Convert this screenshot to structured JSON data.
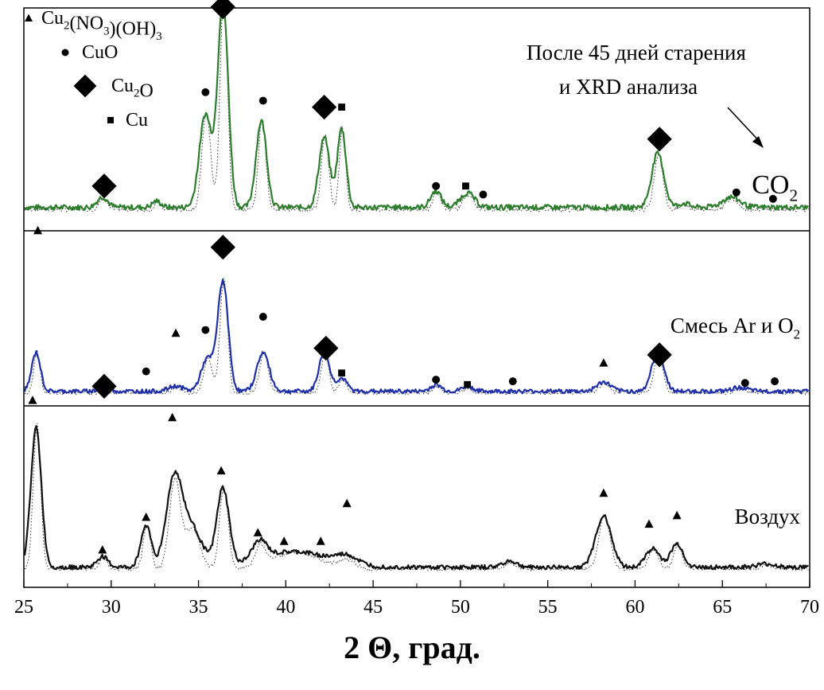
{
  "chart_data": {
    "type": "line",
    "xlabel": "2 Θ, град.",
    "ylabel": "",
    "xlim": [
      25,
      70
    ],
    "xticks": [
      "25",
      "30",
      "35",
      "40",
      "45",
      "50",
      "55",
      "60",
      "65",
      "70"
    ],
    "grid": false,
    "y_axis_visible": false,
    "legend_position": "top-left",
    "legend": [
      {
        "marker": "triangle",
        "label_parts": [
          [
            "Cu",
            ""
          ],
          [
            "2",
            "sub"
          ],
          [
            "(NO",
            ""
          ],
          [
            "3",
            "sub"
          ],
          [
            ")(OH)",
            ""
          ],
          [
            "3",
            "sub"
          ]
        ]
      },
      {
        "marker": "circle",
        "label_parts": [
          [
            "CuO",
            ""
          ]
        ]
      },
      {
        "marker": "diamond",
        "label_parts": [
          [
            "Cu",
            ""
          ],
          [
            "2",
            "sub"
          ],
          [
            "O",
            ""
          ]
        ]
      },
      {
        "marker": "square",
        "label_parts": [
          [
            "Cu",
            ""
          ]
        ]
      }
    ],
    "annotation_lines": [
      "После 45 дней старения",
      "и XRD анализа"
    ],
    "panels": [
      {
        "label_parts": [
          [
            "CO",
            ""
          ],
          [
            "2",
            "sub"
          ]
        ],
        "color": "#2e7d2e",
        "baseline": 0.08,
        "height": 0.97,
        "peaks": [
          [
            29.5,
            0.05,
            0.3
          ],
          [
            32.6,
            0.03,
            0.25
          ],
          [
            35.4,
            0.45,
            0.35
          ],
          [
            36.4,
            1.0,
            0.3
          ],
          [
            38.6,
            0.42,
            0.3
          ],
          [
            42.2,
            0.34,
            0.3
          ],
          [
            43.2,
            0.38,
            0.25
          ],
          [
            48.6,
            0.08,
            0.3
          ],
          [
            50.4,
            0.07,
            0.4
          ],
          [
            61.3,
            0.26,
            0.35
          ],
          [
            65.5,
            0.05,
            0.5
          ],
          [
            62.8,
            0.02,
            0.3
          ]
        ],
        "markers": [
          {
            "x": 29.6,
            "y": 0.18,
            "shape": "diamond"
          },
          {
            "x": 35.4,
            "y": 0.62,
            "shape": "circle"
          },
          {
            "x": 36.4,
            "y": 1.02,
            "shape": "diamond"
          },
          {
            "x": 38.7,
            "y": 0.58,
            "shape": "circle"
          },
          {
            "x": 42.2,
            "y": 0.55,
            "shape": "diamond"
          },
          {
            "x": 43.2,
            "y": 0.55,
            "shape": "square"
          },
          {
            "x": 48.6,
            "y": 0.18,
            "shape": "circle"
          },
          {
            "x": 50.3,
            "y": 0.18,
            "shape": "square"
          },
          {
            "x": 51.3,
            "y": 0.14,
            "shape": "circle"
          },
          {
            "x": 61.4,
            "y": 0.4,
            "shape": "diamond"
          },
          {
            "x": 65.8,
            "y": 0.15,
            "shape": "circle"
          },
          {
            "x": 67.9,
            "y": 0.12,
            "shape": "circle"
          }
        ]
      },
      {
        "label_parts": [
          [
            "Смесь Ar и O",
            ""
          ],
          [
            "2",
            "sub"
          ]
        ],
        "color": "#1f2fa8",
        "baseline": 0.05,
        "height": 0.78,
        "peaks": [
          [
            25.7,
            0.3,
            0.25
          ],
          [
            29.6,
            0.03,
            0.3
          ],
          [
            33.7,
            0.04,
            0.4
          ],
          [
            35.5,
            0.25,
            0.35
          ],
          [
            36.4,
            0.85,
            0.3
          ],
          [
            38.7,
            0.3,
            0.35
          ],
          [
            42.2,
            0.3,
            0.3
          ],
          [
            43.2,
            0.1,
            0.3
          ],
          [
            48.6,
            0.05,
            0.3
          ],
          [
            50.4,
            0.04,
            0.3
          ],
          [
            58.2,
            0.07,
            0.4
          ],
          [
            61.3,
            0.3,
            0.35
          ],
          [
            66.0,
            0.03,
            0.4
          ]
        ],
        "markers": [
          {
            "x": 25.8,
            "y": 1.02,
            "shape": "triangle"
          },
          {
            "x": 29.6,
            "y": 0.08,
            "shape": "diamond"
          },
          {
            "x": 32.0,
            "y": 0.17,
            "shape": "circle"
          },
          {
            "x": 33.7,
            "y": 0.4,
            "shape": "triangle"
          },
          {
            "x": 35.4,
            "y": 0.42,
            "shape": "circle"
          },
          {
            "x": 36.4,
            "y": 0.92,
            "shape": "diamond"
          },
          {
            "x": 38.7,
            "y": 0.5,
            "shape": "circle"
          },
          {
            "x": 42.3,
            "y": 0.31,
            "shape": "diamond"
          },
          {
            "x": 43.2,
            "y": 0.16,
            "shape": "square"
          },
          {
            "x": 48.6,
            "y": 0.12,
            "shape": "circle"
          },
          {
            "x": 50.4,
            "y": 0.09,
            "shape": "square"
          },
          {
            "x": 53.0,
            "y": 0.11,
            "shape": "circle"
          },
          {
            "x": 58.2,
            "y": 0.22,
            "shape": "triangle"
          },
          {
            "x": 61.4,
            "y": 0.27,
            "shape": "diamond"
          },
          {
            "x": 66.3,
            "y": 0.1,
            "shape": "circle"
          },
          {
            "x": 68.0,
            "y": 0.11,
            "shape": "circle"
          }
        ]
      },
      {
        "label_parts": [
          [
            "Воздух",
            ""
          ]
        ],
        "color": "#111111",
        "baseline": 0.08,
        "height": 0.9,
        "peaks": [
          [
            25.7,
            0.9,
            0.3
          ],
          [
            29.5,
            0.07,
            0.3
          ],
          [
            32.0,
            0.27,
            0.3
          ],
          [
            33.6,
            0.55,
            0.45
          ],
          [
            34.6,
            0.25,
            0.6
          ],
          [
            36.4,
            0.5,
            0.35
          ],
          [
            38.5,
            0.12,
            0.4
          ],
          [
            40.5,
            0.1,
            2.0
          ],
          [
            43.5,
            0.05,
            0.6
          ],
          [
            52.8,
            0.04,
            0.4
          ],
          [
            58.2,
            0.33,
            0.45
          ],
          [
            61.0,
            0.12,
            0.4
          ],
          [
            62.4,
            0.15,
            0.35
          ],
          [
            67.5,
            0.02,
            0.5
          ]
        ],
        "markers": [
          {
            "x": 25.5,
            "y": 1.05,
            "shape": "triangle"
          },
          {
            "x": 29.5,
            "y": 0.18,
            "shape": "triangle"
          },
          {
            "x": 32.0,
            "y": 0.37,
            "shape": "triangle"
          },
          {
            "x": 33.5,
            "y": 0.95,
            "shape": "triangle"
          },
          {
            "x": 36.3,
            "y": 0.64,
            "shape": "triangle"
          },
          {
            "x": 38.4,
            "y": 0.28,
            "shape": "triangle"
          },
          {
            "x": 39.9,
            "y": 0.23,
            "shape": "triangle"
          },
          {
            "x": 42.0,
            "y": 0.23,
            "shape": "triangle"
          },
          {
            "x": 43.5,
            "y": 0.45,
            "shape": "triangle"
          },
          {
            "x": 58.2,
            "y": 0.51,
            "shape": "triangle"
          },
          {
            "x": 60.8,
            "y": 0.33,
            "shape": "triangle"
          },
          {
            "x": 62.4,
            "y": 0.38,
            "shape": "triangle"
          }
        ]
      }
    ]
  }
}
